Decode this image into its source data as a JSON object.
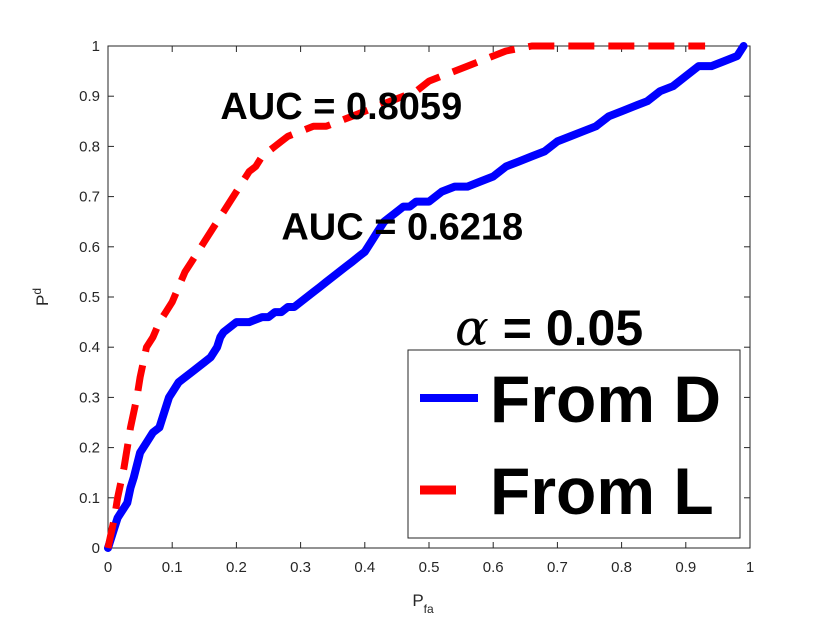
{
  "chart_data": {
    "type": "line",
    "title": "",
    "xlabel": "P",
    "xlabel_sub": "fa",
    "ylabel": "P",
    "ylabel_sub": "d",
    "xlim": [
      0,
      1
    ],
    "ylim": [
      0,
      1
    ],
    "xticks": [
      "0",
      "0.1",
      "0.2",
      "0.3",
      "0.4",
      "0.5",
      "0.6",
      "0.7",
      "0.8",
      "0.9",
      "1"
    ],
    "yticks": [
      "0",
      "0.1",
      "0.2",
      "0.3",
      "0.4",
      "0.5",
      "0.6",
      "0.7",
      "0.8",
      "0.9",
      "1"
    ],
    "grid": false,
    "legend_position": "bottom-right",
    "series": [
      {
        "name": "From D",
        "color": "#0000ff",
        "style": "solid",
        "x": [
          0,
          0.01,
          0.015,
          0.02,
          0.03,
          0.035,
          0.04,
          0.05,
          0.055,
          0.06,
          0.07,
          0.08,
          0.09,
          0.095,
          0.1,
          0.11,
          0.12,
          0.13,
          0.14,
          0.15,
          0.16,
          0.17,
          0.175,
          0.18,
          0.19,
          0.2,
          0.21,
          0.22,
          0.24,
          0.25,
          0.26,
          0.27,
          0.28,
          0.29,
          0.3,
          0.31,
          0.32,
          0.33,
          0.34,
          0.35,
          0.36,
          0.37,
          0.38,
          0.39,
          0.4,
          0.41,
          0.42,
          0.43,
          0.44,
          0.45,
          0.46,
          0.47,
          0.48,
          0.5,
          0.52,
          0.54,
          0.56,
          0.58,
          0.6,
          0.62,
          0.64,
          0.66,
          0.68,
          0.7,
          0.72,
          0.74,
          0.76,
          0.78,
          0.8,
          0.82,
          0.84,
          0.86,
          0.88,
          0.9,
          0.92,
          0.94,
          0.96,
          0.98,
          0.99
        ],
        "y": [
          0,
          0.04,
          0.06,
          0.07,
          0.09,
          0.12,
          0.14,
          0.19,
          0.2,
          0.21,
          0.23,
          0.24,
          0.28,
          0.3,
          0.31,
          0.33,
          0.34,
          0.35,
          0.36,
          0.37,
          0.38,
          0.4,
          0.42,
          0.43,
          0.44,
          0.45,
          0.45,
          0.45,
          0.46,
          0.46,
          0.47,
          0.47,
          0.48,
          0.48,
          0.49,
          0.5,
          0.51,
          0.52,
          0.53,
          0.54,
          0.55,
          0.56,
          0.57,
          0.58,
          0.59,
          0.61,
          0.63,
          0.65,
          0.66,
          0.67,
          0.68,
          0.68,
          0.69,
          0.69,
          0.71,
          0.72,
          0.72,
          0.73,
          0.74,
          0.76,
          0.77,
          0.78,
          0.79,
          0.81,
          0.82,
          0.83,
          0.84,
          0.86,
          0.87,
          0.88,
          0.89,
          0.91,
          0.92,
          0.94,
          0.96,
          0.96,
          0.97,
          0.98,
          1.0
        ]
      },
      {
        "name": "From L",
        "color": "#ff0000",
        "style": "dashed",
        "x": [
          0,
          0.005,
          0.01,
          0.015,
          0.02,
          0.025,
          0.03,
          0.035,
          0.04,
          0.045,
          0.05,
          0.055,
          0.06,
          0.07,
          0.08,
          0.09,
          0.1,
          0.11,
          0.12,
          0.13,
          0.14,
          0.15,
          0.16,
          0.17,
          0.18,
          0.19,
          0.2,
          0.21,
          0.22,
          0.23,
          0.24,
          0.25,
          0.26,
          0.27,
          0.28,
          0.3,
          0.32,
          0.34,
          0.36,
          0.38,
          0.4,
          0.42,
          0.44,
          0.46,
          0.48,
          0.5,
          0.52,
          0.54,
          0.56,
          0.58,
          0.6,
          0.62,
          0.64,
          0.66,
          0.68,
          0.7,
          0.75,
          0.8,
          0.85,
          0.9,
          0.93
        ],
        "y": [
          0,
          0.03,
          0.06,
          0.1,
          0.13,
          0.16,
          0.2,
          0.24,
          0.27,
          0.3,
          0.34,
          0.37,
          0.4,
          0.42,
          0.45,
          0.47,
          0.49,
          0.52,
          0.55,
          0.57,
          0.59,
          0.61,
          0.63,
          0.65,
          0.67,
          0.69,
          0.71,
          0.73,
          0.75,
          0.76,
          0.78,
          0.79,
          0.8,
          0.81,
          0.82,
          0.83,
          0.84,
          0.84,
          0.85,
          0.86,
          0.87,
          0.88,
          0.89,
          0.9,
          0.91,
          0.93,
          0.94,
          0.95,
          0.96,
          0.97,
          0.98,
          0.99,
          0.995,
          1.0,
          1.0,
          1.0,
          1.0,
          1.0,
          1.0,
          1.0,
          1.0
        ]
      }
    ],
    "annotations": [
      {
        "text": "AUC = 0.8059",
        "x": 0.175,
        "y": 0.855
      },
      {
        "text": "AUC = 0.6218",
        "x": 0.27,
        "y": 0.615
      }
    ],
    "alpha_label": {
      "symbol": "α",
      "text": "= 0.05"
    },
    "legend": [
      "From D",
      "From L"
    ]
  }
}
